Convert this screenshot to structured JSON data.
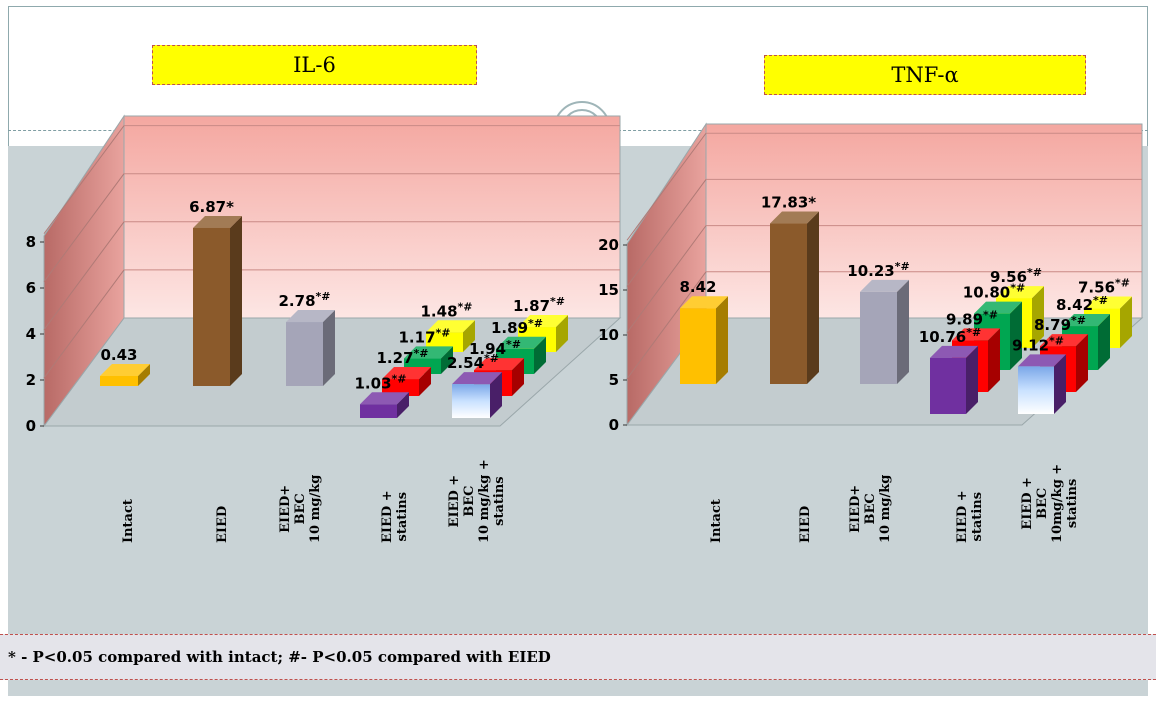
{
  "chart_data": [
    {
      "type": "bar",
      "title": "IL-6",
      "categories": [
        "Intact",
        "EIED",
        "EIED+\nBEC\n10 mg/kg",
        "EIED +\nstatins",
        "EIED +\nBEC\n10 mg/kg +\nstatins"
      ],
      "ylim": [
        0,
        8
      ],
      "yticks": [
        "0",
        "2",
        "4",
        "6",
        "8"
      ],
      "grid": true,
      "bars": [
        {
          "value": 0.43,
          "label": "0.43",
          "sup": "",
          "color": "#ffc000",
          "category": 0
        },
        {
          "value": 6.87,
          "label": "6.87*",
          "sup": "",
          "color": "#8b5a2b",
          "category": 1
        },
        {
          "value": 2.78,
          "label": "2.78",
          "sup": "*#",
          "color": "#a5a5b8",
          "category": 2
        },
        {
          "value": 1.03,
          "label": "1.03",
          "sup": "*#",
          "color": "#7030a0",
          "category": 3
        },
        {
          "value": 1.27,
          "label": "1.27",
          "sup": "*#",
          "color": "#ff0000",
          "category": 3
        },
        {
          "value": 1.17,
          "label": "1.17",
          "sup": "*#",
          "color": "#00a651",
          "category": 3
        },
        {
          "value": 1.48,
          "label": "1.48",
          "sup": "*#",
          "color": "#ffff00",
          "category": 3
        },
        {
          "value": 2.54,
          "label": "2.54",
          "sup": "*#",
          "color": "#7030a0",
          "category": 4
        },
        {
          "value": 1.94,
          "label": "1.94",
          "sup": "*#",
          "color": "#ff0000",
          "category": 4
        },
        {
          "value": 1.89,
          "label": "1.89",
          "sup": "*#",
          "color": "#00a651",
          "category": 4
        },
        {
          "value": 1.87,
          "label": "1.87",
          "sup": "*#",
          "color": "#ffff00",
          "category": 4
        }
      ]
    },
    {
      "type": "bar",
      "title": "TNF-α",
      "categories": [
        "Intact",
        "EIED",
        "EIED+\nBEC\n10 mg/kg",
        "EIED +\nstatins",
        "EIED +\nBEC\n10mg/kg +\nstatins"
      ],
      "ylim": [
        0,
        20
      ],
      "yticks": [
        "0",
        "5",
        "10",
        "15",
        "20"
      ],
      "grid": true,
      "bars": [
        {
          "value": 8.42,
          "label": "8.42",
          "sup": "",
          "color": "#ffc000",
          "category": 0
        },
        {
          "value": 17.83,
          "label": "17.83*",
          "sup": "",
          "color": "#8b5a2b",
          "category": 1
        },
        {
          "value": 10.23,
          "label": "10.23",
          "sup": "*#",
          "color": "#a5a5b8",
          "category": 2
        },
        {
          "value": 10.76,
          "label": "10.76",
          "sup": "*#",
          "color": "#7030a0",
          "category": 3
        },
        {
          "value": 9.89,
          "label": "9.89",
          "sup": "*#",
          "color": "#ff0000",
          "category": 3
        },
        {
          "value": 10.8,
          "label": "10.80",
          "sup": "*#",
          "color": "#00a651",
          "category": 3
        },
        {
          "value": 9.56,
          "label": "9.56",
          "sup": "*#",
          "color": "#ffff00",
          "category": 3
        },
        {
          "value": 9.12,
          "label": "9.12",
          "sup": "*#",
          "color": "#7030a0",
          "category": 4
        },
        {
          "value": 8.79,
          "label": "8.79",
          "sup": "*#",
          "color": "#ff0000",
          "category": 4
        },
        {
          "value": 8.42,
          "label": "8.42",
          "sup": "*#",
          "color": "#00a651",
          "category": 4
        },
        {
          "value": 7.56,
          "label": "7.56",
          "sup": "*#",
          "color": "#ffff00",
          "category": 4
        }
      ]
    }
  ],
  "footnote": "* - P<0.05 compared with intact; #- P<0.05 compared with EIED"
}
